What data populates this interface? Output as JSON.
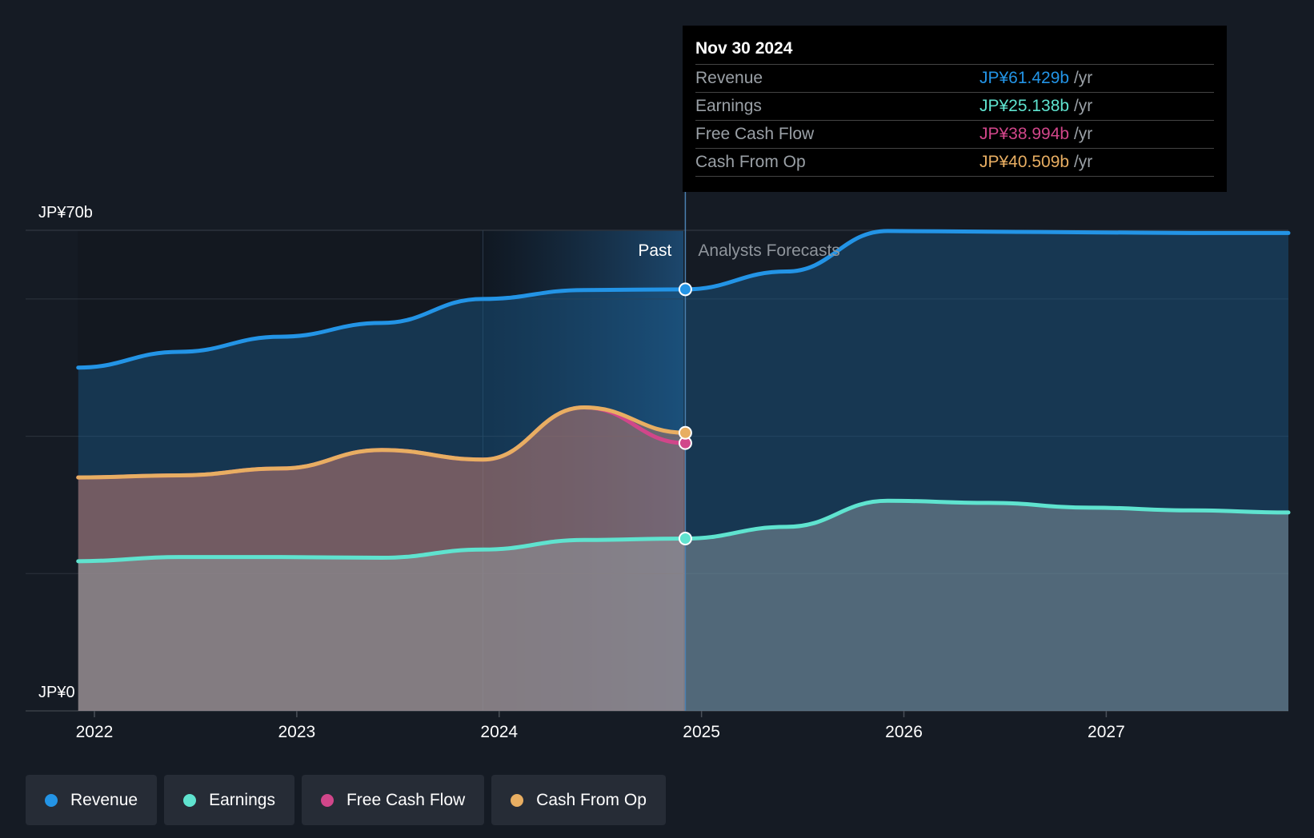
{
  "colors": {
    "revenue": "#2394e6",
    "earnings": "#5fe3cf",
    "free_cash_flow": "#d1468a",
    "cash_from_op": "#e8ae62",
    "background": "#151b24"
  },
  "tooltip": {
    "date": "Nov 30 2024",
    "rows": [
      {
        "label": "Revenue",
        "value": "JP¥61.429b",
        "unit": "/yr"
      },
      {
        "label": "Earnings",
        "value": "JP¥25.138b",
        "unit": "/yr"
      },
      {
        "label": "Free Cash Flow",
        "value": "JP¥38.994b",
        "unit": "/yr"
      },
      {
        "label": "Cash From Op",
        "value": "JP¥40.509b",
        "unit": "/yr"
      }
    ]
  },
  "legend": [
    {
      "label": "Revenue",
      "color": "#2394e6"
    },
    {
      "label": "Earnings",
      "color": "#5fe3cf"
    },
    {
      "label": "Free Cash Flow",
      "color": "#d1468a"
    },
    {
      "label": "Cash From Op",
      "color": "#e8ae62"
    }
  ],
  "chart_data": {
    "type": "area",
    "y_top_label": "JP¥70b",
    "y_bottom_label": "JP¥0",
    "ylim": [
      0,
      70
    ],
    "xlim": [
      2021.66,
      2027.9
    ],
    "x_ticks": [
      "2022",
      "2023",
      "2024",
      "2025",
      "2026",
      "2027"
    ],
    "x_tick_values": [
      2022,
      2023,
      2024,
      2025,
      2026,
      2027
    ],
    "past_label": "Past",
    "forecast_label": "Analysts Forecasts",
    "past_divider_x": 2024.92,
    "shaded_region_start_x": 2023.92,
    "grid": true,
    "series": [
      {
        "name": "Revenue",
        "x": [
          2021.92,
          2022.42,
          2022.92,
          2023.42,
          2023.92,
          2024.42,
          2024.92,
          2025.42,
          2025.92,
          2026.42,
          2026.92,
          2027.42,
          2027.9
        ],
        "values": [
          50.0,
          52.3,
          54.5,
          56.5,
          60.0,
          61.3,
          61.4,
          64.0,
          69.9,
          69.8,
          69.7,
          69.6,
          69.6
        ]
      },
      {
        "name": "Earnings",
        "x": [
          2021.92,
          2022.42,
          2022.92,
          2023.42,
          2023.92,
          2024.42,
          2024.92,
          2025.42,
          2025.92,
          2026.42,
          2026.92,
          2027.42,
          2027.9
        ],
        "values": [
          21.8,
          22.4,
          22.4,
          22.3,
          23.5,
          24.9,
          25.1,
          26.8,
          30.6,
          30.3,
          29.6,
          29.2,
          28.9
        ]
      },
      {
        "name": "Free Cash Flow",
        "x": [
          2021.92,
          2022.42,
          2022.92,
          2023.42,
          2023.92,
          2024.42,
          2024.92
        ],
        "values": [
          34.0,
          34.3,
          35.3,
          38.0,
          36.6,
          44.2,
          39.0
        ]
      },
      {
        "name": "Cash From Op",
        "x": [
          2021.92,
          2022.42,
          2022.92,
          2023.42,
          2023.92,
          2024.42,
          2024.92
        ],
        "values": [
          34.0,
          34.3,
          35.3,
          38.0,
          36.6,
          44.2,
          40.5
        ]
      }
    ]
  }
}
